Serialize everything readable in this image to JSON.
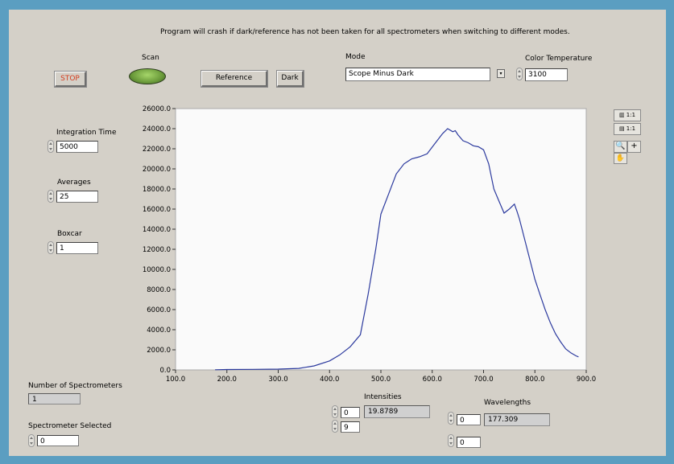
{
  "warning": "Program will crash if dark/reference has not been taken for all spectrometers when switching to different modes.",
  "controls": {
    "stop_label": "STOP",
    "scan_label": "Scan",
    "reference_label": "Reference",
    "dark_label": "Dark",
    "mode_label": "Mode",
    "mode_value": "Scope Minus Dark",
    "color_temp_label": "Color Temperature",
    "color_temp_value": "3100",
    "integration_label": "Integration Time",
    "integration_value": "5000",
    "averages_label": "Averages",
    "averages_value": "25",
    "boxcar_label": "Boxcar",
    "boxcar_value": "1",
    "num_spectrometers_label": "Number of Spectrometers",
    "num_spectrometers_value": "1",
    "spectrometer_selected_label": "Spectrometer Selected",
    "spectrometer_selected_value": "0"
  },
  "intensities": {
    "label": "Intensities",
    "index": "0",
    "value": "19.8789",
    "index2": "9"
  },
  "wavelengths": {
    "label": "Wavelengths",
    "index": "0",
    "value": "177.309",
    "index2": "0"
  },
  "graph_tools": {
    "scale_x": "1:1",
    "scale_y": "1:1",
    "zoom_icon": "zoom-icon",
    "cursor_icon": "crosshair-icon",
    "pan_icon": "hand-icon"
  },
  "colors": {
    "frame": "#5b9ec1",
    "panel": "#d4d0c8",
    "plot_bg": "#fafafa",
    "trace": "#2c3a9e",
    "stop_text": "#d43c1e",
    "led": "#7fb04a"
  },
  "chart_data": {
    "type": "line",
    "xlim": [
      100,
      900
    ],
    "ylim": [
      0,
      26000
    ],
    "xticks": [
      "100.0",
      "200.0",
      "300.0",
      "400.0",
      "500.0",
      "600.0",
      "700.0",
      "800.0",
      "900.0"
    ],
    "yticks": [
      "0.0",
      "2000.0",
      "4000.0",
      "6000.0",
      "8000.0",
      "10000.0",
      "12000.0",
      "14000.0",
      "16000.0",
      "18000.0",
      "20000.0",
      "22000.0",
      "24000.0",
      "26000.0"
    ],
    "series": [
      {
        "x": [
          177,
          200,
          250,
          300,
          340,
          370,
          400,
          420,
          440,
          460,
          475,
          490,
          500,
          515,
          530,
          545,
          560,
          575,
          590,
          605,
          620,
          630,
          640,
          645,
          650,
          660,
          670,
          680,
          690,
          700,
          710,
          720,
          730,
          740,
          750,
          760,
          765,
          770,
          780,
          790,
          800,
          810,
          820,
          830,
          840,
          850,
          860,
          870,
          880,
          885
        ],
        "y": [
          20,
          40,
          60,
          80,
          150,
          400,
          900,
          1500,
          2300,
          3500,
          7500,
          12000,
          15500,
          17500,
          19500,
          20500,
          21000,
          21200,
          21500,
          22500,
          23500,
          24000,
          23700,
          23800,
          23400,
          22800,
          22600,
          22300,
          22200,
          21900,
          20500,
          18000,
          16800,
          15600,
          16000,
          16500,
          15800,
          15000,
          13000,
          11000,
          9000,
          7500,
          6000,
          4700,
          3600,
          2800,
          2100,
          1700,
          1400,
          1300
        ]
      }
    ]
  }
}
